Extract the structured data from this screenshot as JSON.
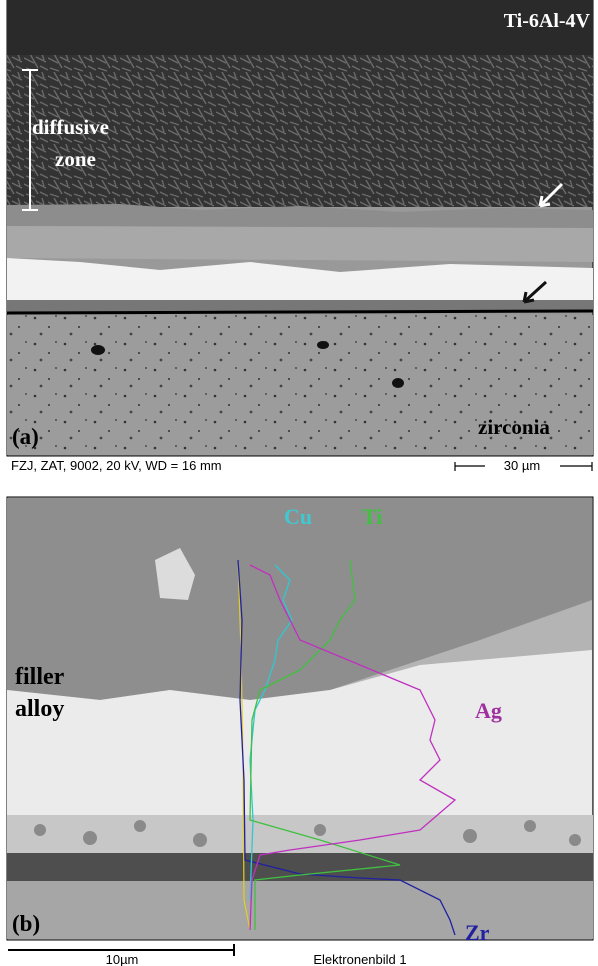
{
  "panel_a": {
    "label": "(a)",
    "material": "Ti-6Al-4V",
    "zone_label": [
      "diffusive",
      "zone"
    ],
    "substrate": "zirconia",
    "info": "FZJ, ZAT, 9002, 20 kV, WD = 16 mm",
    "scale_bar": "30 µm"
  },
  "panel_b": {
    "label": "(b)",
    "elements": [
      "Cu",
      "Ti",
      "Ag",
      "Zr"
    ],
    "filler_label": [
      "filler",
      "alloy"
    ],
    "scale_bar": "10µm",
    "image_name": "Elektronenbild 1"
  }
}
